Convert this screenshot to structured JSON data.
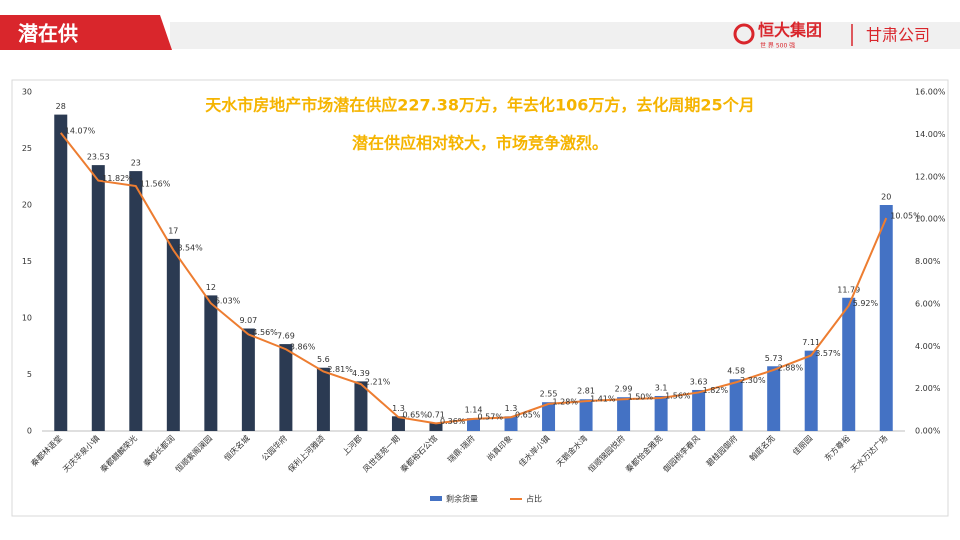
{
  "header": {
    "title": "潜在供",
    "logo": "恒大集团",
    "logo_sub": "世 界 500 强",
    "company": "甘肃公司"
  },
  "chart_data": {
    "type": "bar-line",
    "annotations": [
      "天水市房地产市场潜在供应227.38万方，年去化106万方，去化周期25个月",
      "潜在供应相对较大，市场竞争激烈。"
    ],
    "categories": [
      "秦都林语堂",
      "天庆华泉小镇",
      "秦都麒麟荣光",
      "秦都长都润",
      "恒顺紫阁澜园",
      "恒庆名城",
      "公园华府",
      "保利上河雅颂",
      "上河郡",
      "凤世佳苑一期",
      "秦都裕石公馆",
      "瑞鼎·瑞府",
      "尚真印象",
      "佳水岸小镇",
      "天鹅金水湾",
      "恒顺锦园悦府",
      "秦都怡金雅苑",
      "御园桃李春风",
      "碧桂园御府",
      "翰庭名苑",
      "佳丽园",
      "东方尊裕",
      "天水万达广场"
    ],
    "series": [
      {
        "name": "剩余货量",
        "type": "bar",
        "color": "#4472c4",
        "colors": [
          "#2b3a52",
          "#2b3a52",
          "#2b3a52",
          "#2b3a52",
          "#2b3a52",
          "#2b3a52",
          "#2b3a52",
          "#2b3a52",
          "#2b3a52",
          "#2b3a52",
          "#2b3a52",
          "#4472c4",
          "#4472c4",
          "#4472c4",
          "#4472c4",
          "#4472c4",
          "#4472c4",
          "#4472c4",
          "#4472c4",
          "#4472c4",
          "#4472c4",
          "#4472c4",
          "#4472c4"
        ],
        "values": [
          28,
          23.53,
          23,
          17,
          12,
          9.07,
          7.69,
          5.6,
          4.39,
          1.3,
          0.71,
          1.14,
          1.3,
          2.55,
          2.81,
          2.99,
          3.1,
          3.63,
          4.58,
          5.73,
          7.11,
          11.79,
          20
        ]
      },
      {
        "name": "占比",
        "type": "line",
        "axis": "y2",
        "color": "#ed7d31",
        "values": [
          14.07,
          11.82,
          11.56,
          8.54,
          6.03,
          4.56,
          3.86,
          2.81,
          2.21,
          0.65,
          0.36,
          0.57,
          0.65,
          1.28,
          1.41,
          1.5,
          1.56,
          1.82,
          2.3,
          2.88,
          3.57,
          5.92,
          10.05
        ],
        "value_labels": [
          "14.07%",
          "11.82%",
          "11.56%",
          "8.54%",
          "6.03%",
          "4.56%",
          "3.86%",
          "2.81%",
          "2.21%",
          "0.65%",
          "0.36%",
          "0.57%",
          "0.65%",
          "1.28%",
          "1.41%",
          "1.50%",
          "1.56%",
          "1.82%",
          "2.30%",
          "2.88%",
          "3.57%",
          "5.92%",
          "10.05%"
        ]
      }
    ],
    "ylim": [
      0,
      30
    ],
    "yticks": [
      0,
      5,
      10,
      15,
      20,
      25,
      30
    ],
    "y2lim": [
      0,
      16
    ],
    "y2ticks": [
      {
        "value": 0,
        "label": "0.00%"
      },
      {
        "value": 2,
        "label": "2.00%"
      },
      {
        "value": 4,
        "label": "4.00%"
      },
      {
        "value": 6,
        "label": "6.00%"
      },
      {
        "value": 8,
        "label": "8.00%"
      },
      {
        "value": 10,
        "label": "10.00%"
      },
      {
        "value": 12,
        "label": "12.00%"
      },
      {
        "value": 14,
        "label": "14.00%"
      },
      {
        "value": 16,
        "label": "16.00%"
      }
    ]
  }
}
